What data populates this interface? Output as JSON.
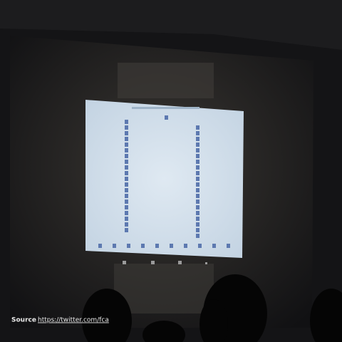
{
  "caption": {
    "label": "Source",
    "separator": ":",
    "url": "https://twitter.com/fca"
  }
}
